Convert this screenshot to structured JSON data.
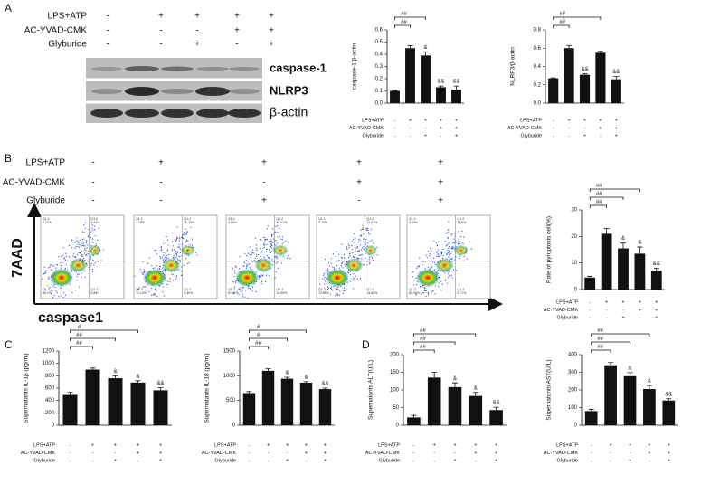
{
  "panel_labels": [
    "A",
    "B",
    "C",
    "D"
  ],
  "conditions": {
    "labels": [
      "LPS+ATP",
      "AC-YVAD-CMK",
      "Glyburide"
    ],
    "signs": [
      [
        "-",
        "+",
        "+",
        "+",
        "+"
      ],
      [
        "-",
        "-",
        "-",
        "+",
        "+"
      ],
      [
        "-",
        "-",
        "+",
        "-",
        "+"
      ]
    ]
  },
  "blot": {
    "rows": [
      "caspase-1",
      "NLRP3",
      "β-actin"
    ]
  },
  "flow": {
    "ylabel": "7AAD",
    "xlabel": "caspase1",
    "plots": [
      {
        "quadrants": [
          [
            "Q1-1",
            "0.21%"
          ],
          [
            "Q1-2",
            "4.05%"
          ],
          [
            "Q1-3",
            "95.1%"
          ],
          [
            "Q1-4",
            "0.88%"
          ]
        ]
      },
      {
        "quadrants": [
          [
            "Q1-1",
            "1.78%"
          ],
          [
            "Q1-2",
            "20.79%"
          ],
          [
            "Q1-3",
            "72.13%"
          ],
          [
            "Q1-4",
            "5.30%"
          ]
        ]
      },
      {
        "quadrants": [
          [
            "Q1-1",
            "0.86%"
          ],
          [
            "Q1-2",
            "16.57%"
          ],
          [
            "Q1-3",
            "67.62%"
          ],
          [
            "Q1-4",
            "14.95%"
          ]
        ]
      },
      {
        "quadrants": [
          [
            "Q1-1",
            "0.34%"
          ],
          [
            "Q1-2",
            "12.61%"
          ],
          [
            "Q1-3",
            "72.45%"
          ],
          [
            "Q1-4",
            "14.60%"
          ]
        ]
      },
      {
        "quadrants": [
          [
            "Q1-1",
            "0.53%"
          ],
          [
            "Q1-2",
            "7.65%"
          ],
          [
            "Q1-3",
            "82.05%"
          ],
          [
            "Q1-4",
            "9.77%"
          ]
        ]
      }
    ]
  },
  "chart_data": [
    {
      "type": "bar",
      "ylabel": "caspase-1/β-actin",
      "ylim": [
        0,
        0.6
      ],
      "yticks": [
        {
          "value": 0,
          "label": "0.0"
        },
        0.1,
        0.2,
        0.3,
        0.4,
        0.5,
        0.6
      ],
      "color": "#111111",
      "values": [
        0.1,
        0.45,
        0.39,
        0.13,
        0.11
      ],
      "errors": [
        0.004,
        0.02,
        0.03,
        0.01,
        0.03
      ],
      "marks": [
        null,
        null,
        "&",
        "&&",
        "&&"
      ],
      "brackets": [
        {
          "from": 0,
          "to": 1,
          "label": "##"
        },
        {
          "from": 0,
          "to": 2,
          "label": "##"
        }
      ]
    },
    {
      "type": "bar",
      "ylabel": "NLRP3/β-actin",
      "ylim": [
        0,
        0.8
      ],
      "yticks": [
        {
          "value": 0,
          "label": "0.0"
        },
        0.2,
        0.4,
        0.6,
        0.8
      ],
      "color": "#111111",
      "values": [
        0.27,
        0.6,
        0.31,
        0.55,
        0.26
      ],
      "errors": [
        0.005,
        0.03,
        0.01,
        0.015,
        0.03
      ],
      "marks": [
        null,
        null,
        "&&",
        null,
        "&&"
      ],
      "brackets": [
        {
          "from": 0,
          "to": 1,
          "label": "##"
        },
        {
          "from": 0,
          "to": 3,
          "label": "##"
        }
      ]
    },
    {
      "type": "bar",
      "ylabel": "Rate of pyroptosis cell(%)",
      "ylim": [
        0,
        30
      ],
      "yticks": [
        0,
        10,
        20,
        30
      ],
      "color": "#111111",
      "values": [
        4.5,
        21,
        15.5,
        13.5,
        7
      ],
      "errors": [
        0.5,
        2,
        2,
        2.5,
        1
      ],
      "marks": [
        null,
        null,
        "&",
        "&",
        "&&"
      ],
      "brackets": [
        {
          "from": 0,
          "to": 1,
          "label": "##"
        },
        {
          "from": 0,
          "to": 2,
          "label": "##"
        },
        {
          "from": 0,
          "to": 3,
          "label": "##"
        }
      ]
    },
    {
      "type": "bar",
      "ylabel": "Supernatants IL-1β (pg/ml)",
      "ylim": [
        0,
        1200
      ],
      "yticks": [
        0,
        200,
        400,
        600,
        800,
        1000,
        1200
      ],
      "color": "#111111",
      "values": [
        490,
        900,
        760,
        690,
        565
      ],
      "errors": [
        40,
        25,
        40,
        30,
        40
      ],
      "marks": [
        null,
        null,
        "&",
        "&",
        "&&"
      ],
      "brackets": [
        {
          "from": 0,
          "to": 1,
          "label": "##"
        },
        {
          "from": 0,
          "to": 2,
          "label": "##"
        },
        {
          "from": 0,
          "to": 3,
          "label": "#"
        }
      ]
    },
    {
      "type": "bar",
      "ylabel": "Supernatants IL-18 (pg/ml)",
      "ylim": [
        0,
        1500
      ],
      "yticks": [
        0,
        500,
        1000,
        1500
      ],
      "color": "#111111",
      "values": [
        650,
        1100,
        940,
        860,
        730
      ],
      "errors": [
        30,
        40,
        30,
        20,
        20
      ],
      "marks": [
        null,
        null,
        "&",
        "&",
        "&&"
      ],
      "brackets": [
        {
          "from": 0,
          "to": 1,
          "label": "##"
        },
        {
          "from": 0,
          "to": 2,
          "label": "#"
        },
        {
          "from": 0,
          "to": 3,
          "label": "#"
        }
      ]
    },
    {
      "type": "bar",
      "ylabel": "Supernatants ALT(U/L)",
      "ylim": [
        0,
        200
      ],
      "yticks": [
        0,
        50,
        100,
        150,
        200
      ],
      "color": "#111111",
      "values": [
        22,
        135,
        108,
        83,
        43
      ],
      "errors": [
        6,
        15,
        12,
        10,
        8
      ],
      "marks": [
        null,
        null,
        "&",
        "&",
        "&&"
      ],
      "brackets": [
        {
          "from": 0,
          "to": 1,
          "label": "##"
        },
        {
          "from": 0,
          "to": 2,
          "label": "##"
        },
        {
          "from": 0,
          "to": 3,
          "label": "##"
        }
      ]
    },
    {
      "type": "bar",
      "ylabel": "Supernatants AST(U/L)",
      "ylim": [
        0,
        400
      ],
      "yticks": [
        0,
        100,
        200,
        300,
        400
      ],
      "color": "#111111",
      "values": [
        80,
        340,
        278,
        205,
        140
      ],
      "errors": [
        10,
        15,
        20,
        20,
        10
      ],
      "marks": [
        null,
        null,
        "&",
        "&",
        "&&"
      ],
      "brackets": [
        {
          "from": 0,
          "to": 1,
          "label": "##"
        },
        {
          "from": 0,
          "to": 2,
          "label": "##"
        },
        {
          "from": 0,
          "to": 3,
          "label": "##"
        }
      ]
    }
  ]
}
